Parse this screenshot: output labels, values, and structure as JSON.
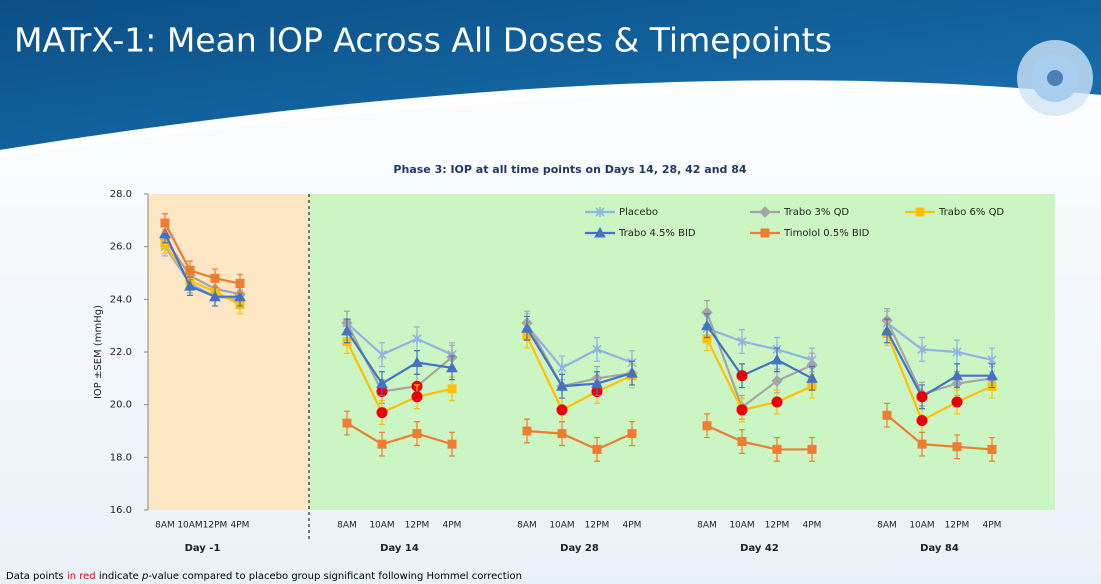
{
  "slide_title": "MATrX-1: Mean IOP Across All Doses & Timepoints",
  "footnote": [
    "Data points ",
    "in red",
    " indicate ",
    "p",
    "-value compared to placebo group significant following Hommel correction"
  ],
  "chart_data": {
    "type": "line",
    "title": "Phase 3: IOP at all time points on Days 14, 28, 42 and 84",
    "y_label": "IOP ±SEM (mmHg)",
    "groups": [
      "Day -1",
      "Day 14",
      "Day 28",
      "Day 42",
      "Day 84"
    ],
    "categories": [
      "8AM",
      "10AM",
      "12PM",
      "4PM",
      "8AM",
      "10AM",
      "12PM",
      "4PM",
      "8AM",
      "10AM",
      "12PM",
      "4PM",
      "8AM",
      "10AM",
      "12PM",
      "4PM",
      "8AM",
      "10AM",
      "12PM",
      "4PM"
    ],
    "ylim": [
      16,
      28
    ],
    "yticks": [
      {
        "value": 16,
        "label": "16.0"
      },
      {
        "value": 18,
        "label": "18.0"
      },
      {
        "value": 20,
        "label": "20.0"
      },
      {
        "value": 22,
        "label": "22.0"
      },
      {
        "value": 24,
        "label": "24.0"
      },
      {
        "value": 26,
        "label": "26.0"
      },
      {
        "value": 28,
        "label": "28.0"
      }
    ],
    "significant_color": "#e8000b",
    "series": [
      {
        "name": "Placebo",
        "color": "#8fb4e3",
        "marker": "star",
        "values": [
          26.0,
          24.6,
          24.1,
          24.0,
          23.1,
          21.9,
          22.5,
          21.9,
          23.0,
          21.4,
          22.1,
          21.6,
          22.9,
          22.4,
          22.1,
          21.7,
          23.1,
          22.1,
          22.0,
          21.7
        ],
        "errors": [
          0.35,
          0.35,
          0.35,
          0.35,
          0.45,
          0.45,
          0.45,
          0.45,
          0.45,
          0.45,
          0.45,
          0.45,
          0.45,
          0.45,
          0.45,
          0.45,
          0.45,
          0.45,
          0.45,
          0.45
        ],
        "significant": []
      },
      {
        "name": "Trabo 3% QD",
        "color": "#a5a5a5",
        "marker": "diamond",
        "values": [
          26.3,
          24.9,
          24.4,
          24.2,
          23.1,
          20.5,
          20.7,
          21.8,
          23.1,
          20.7,
          21.0,
          21.2,
          23.5,
          19.9,
          20.9,
          21.5,
          23.2,
          20.4,
          20.8,
          21.0
        ],
        "errors": [
          0.35,
          0.35,
          0.35,
          0.35,
          0.45,
          0.45,
          0.45,
          0.45,
          0.45,
          0.45,
          0.45,
          0.45,
          0.45,
          0.45,
          0.45,
          0.45,
          0.45,
          0.45,
          0.45,
          0.45
        ],
        "significant": [
          5,
          6
        ]
      },
      {
        "name": "Trabo 6% QD",
        "color": "#ffc000",
        "marker": "square",
        "values": [
          26.1,
          24.7,
          24.3,
          23.8,
          22.4,
          19.7,
          20.3,
          20.6,
          22.6,
          19.8,
          20.5,
          21.1,
          22.5,
          19.8,
          20.1,
          20.7,
          22.7,
          19.4,
          20.1,
          20.7
        ],
        "errors": [
          0.35,
          0.35,
          0.35,
          0.35,
          0.45,
          0.45,
          0.45,
          0.45,
          0.45,
          0.45,
          0.45,
          0.45,
          0.45,
          0.45,
          0.45,
          0.45,
          0.45,
          0.45,
          0.45,
          0.45
        ],
        "significant": [
          5,
          6,
          9,
          10,
          13,
          14,
          17,
          18
        ]
      },
      {
        "name": "Trabo  4.5% BID",
        "color": "#4472c4",
        "marker": "triangle",
        "values": [
          26.5,
          24.5,
          24.1,
          24.1,
          22.8,
          20.8,
          21.6,
          21.4,
          22.9,
          20.7,
          20.8,
          21.2,
          23.0,
          21.1,
          21.7,
          21.0,
          22.8,
          20.3,
          21.1,
          21.1
        ],
        "errors": [
          0.35,
          0.35,
          0.35,
          0.35,
          0.45,
          0.45,
          0.45,
          0.45,
          0.45,
          0.45,
          0.45,
          0.45,
          0.45,
          0.45,
          0.45,
          0.45,
          0.45,
          0.45,
          0.45,
          0.45
        ],
        "significant": [
          13,
          17
        ]
      },
      {
        "name": "Timolol 0.5% BID",
        "color": "#ed7d31",
        "marker": "square",
        "values": [
          26.9,
          25.1,
          24.8,
          24.6,
          19.3,
          18.5,
          18.9,
          18.5,
          19.0,
          18.9,
          18.3,
          18.9,
          19.2,
          18.6,
          18.3,
          18.3,
          19.6,
          18.5,
          18.4,
          18.3
        ],
        "errors": [
          0.35,
          0.35,
          0.35,
          0.35,
          0.45,
          0.45,
          0.45,
          0.45,
          0.45,
          0.45,
          0.45,
          0.45,
          0.45,
          0.45,
          0.45,
          0.45,
          0.45,
          0.45,
          0.45,
          0.45
        ],
        "significant": []
      }
    ]
  }
}
